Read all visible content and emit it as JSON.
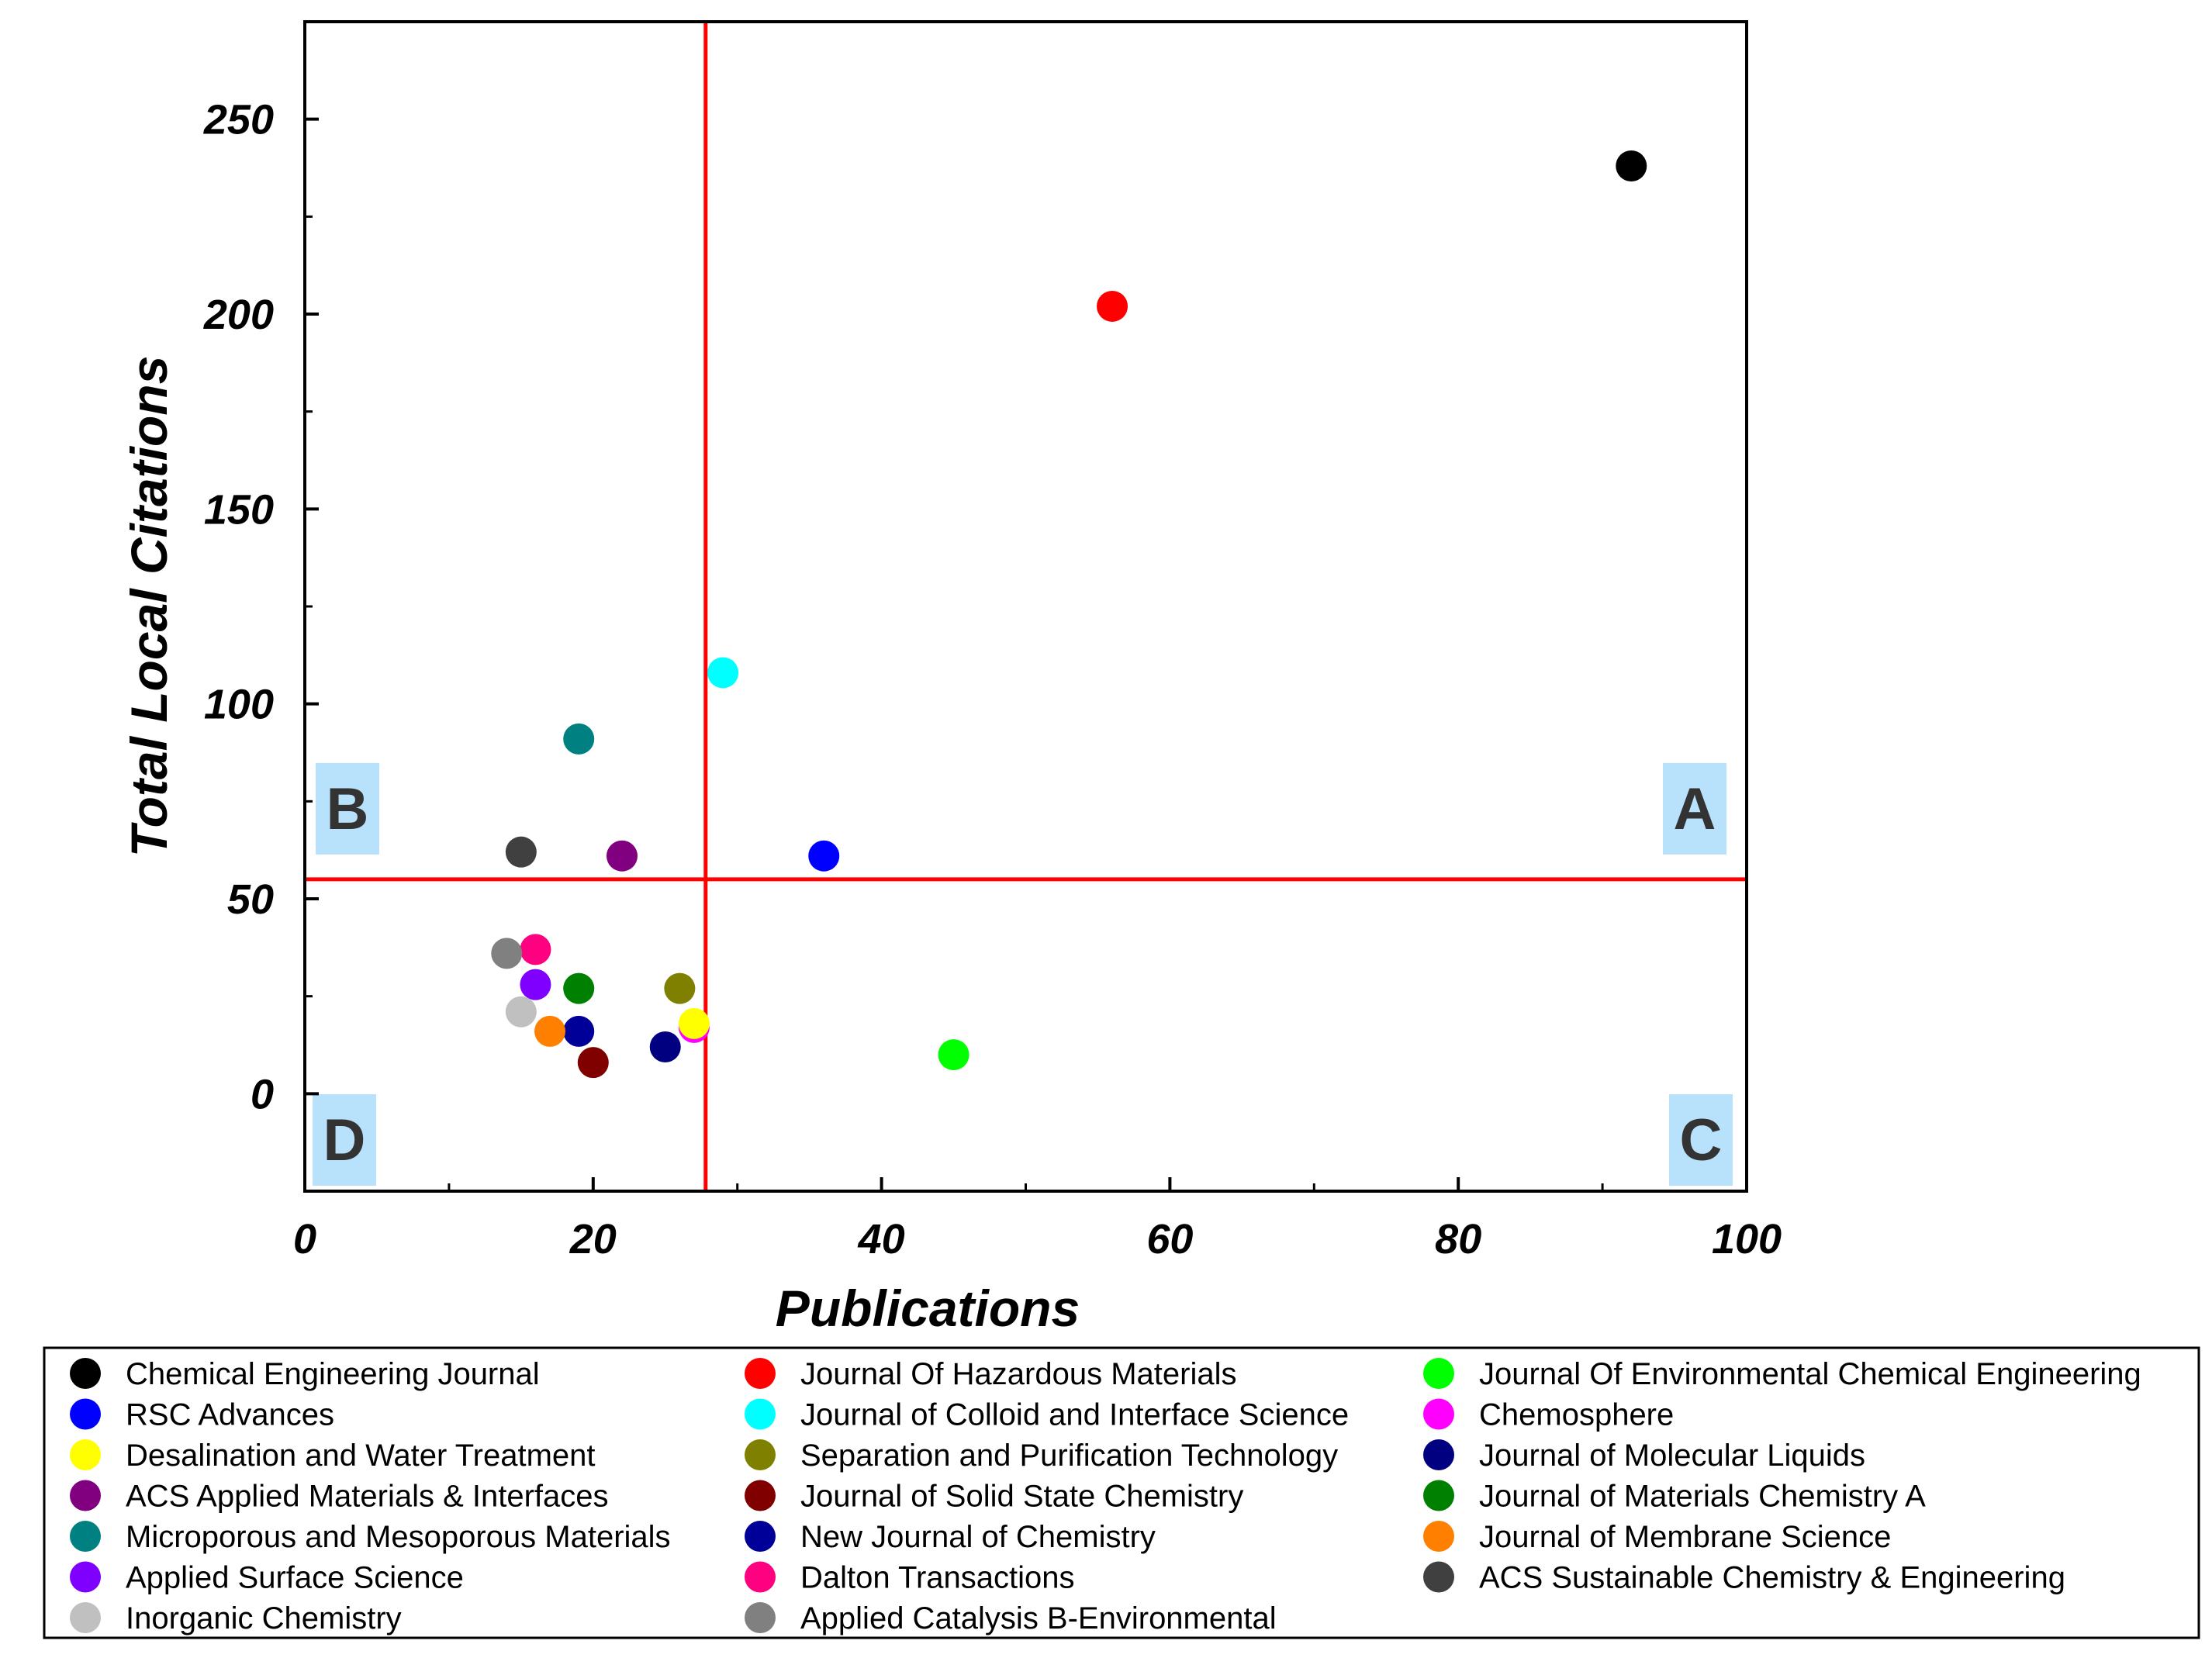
{
  "chart_data": {
    "type": "scatter",
    "xlabel": "Publications",
    "ylabel": "Total Local Citations",
    "xlim": [
      0,
      100
    ],
    "ylim": [
      -25,
      275
    ],
    "xticks": [
      0,
      20,
      40,
      60,
      80,
      100
    ],
    "yticks": [
      0,
      50,
      100,
      150,
      200,
      250
    ],
    "threshold_lines": {
      "x": 27.8,
      "y": 55,
      "color": "#ff0000"
    },
    "quadrant_labels": [
      {
        "label": "A",
        "position": "top-right"
      },
      {
        "label": "B",
        "position": "top-left"
      },
      {
        "label": "C",
        "position": "bottom-right"
      },
      {
        "label": "D",
        "position": "bottom-left"
      }
    ],
    "quadrant_label_bg": "#b8e1fb",
    "legend_position": "bottom",
    "series": [
      {
        "name": "Chemical Engineering Journal",
        "color": "#000000",
        "x": 92,
        "y": 238
      },
      {
        "name": "Journal Of Hazardous Materials",
        "color": "#ff0000",
        "x": 56,
        "y": 202
      },
      {
        "name": "Journal Of Environmental Chemical Engineering",
        "color": "#00ff00",
        "x": 45,
        "y": 10
      },
      {
        "name": "RSC Advances",
        "color": "#0000ff",
        "x": 36,
        "y": 61
      },
      {
        "name": "Journal of Colloid and Interface Science",
        "color": "#00ffff",
        "x": 29,
        "y": 108
      },
      {
        "name": "Chemosphere",
        "color": "#ff00ff",
        "x": 27,
        "y": 17
      },
      {
        "name": "Desalination and Water Treatment",
        "color": "#ffff00",
        "x": 27,
        "y": 18
      },
      {
        "name": "Separation and Purification Technology",
        "color": "#808000",
        "x": 26,
        "y": 27
      },
      {
        "name": "Journal of Molecular Liquids",
        "color": "#000080",
        "x": 25,
        "y": 12
      },
      {
        "name": "ACS Applied Materials & Interfaces",
        "color": "#800080",
        "x": 22,
        "y": 61
      },
      {
        "name": "Journal of Solid State Chemistry",
        "color": "#800000",
        "x": 20,
        "y": 8
      },
      {
        "name": "Journal of Materials Chemistry A",
        "color": "#008000",
        "x": 19,
        "y": 27
      },
      {
        "name": "Microporous and Mesoporous Materials",
        "color": "#008080",
        "x": 19,
        "y": 91
      },
      {
        "name": "New Journal of Chemistry",
        "color": "#000099",
        "x": 19,
        "y": 16
      },
      {
        "name": "Journal of Membrane Science",
        "color": "#ff8000",
        "x": 17,
        "y": 16
      },
      {
        "name": "Applied Surface Science",
        "color": "#8000ff",
        "x": 16,
        "y": 28
      },
      {
        "name": "Dalton Transactions",
        "color": "#ff0080",
        "x": 16,
        "y": 37
      },
      {
        "name": "ACS Sustainable Chemistry & Engineering",
        "color": "#404040",
        "x": 15,
        "y": 62
      },
      {
        "name": "Inorganic Chemistry",
        "color": "#c0c0c0",
        "x": 15,
        "y": 21
      },
      {
        "name": "Applied Catalysis B-Environmental",
        "color": "#808080",
        "x": 14,
        "y": 36
      }
    ],
    "legend_order": [
      "Chemical Engineering Journal",
      "Journal Of Hazardous Materials",
      "Journal Of Environmental Chemical Engineering",
      "RSC Advances",
      "Journal of Colloid and Interface Science",
      "Chemosphere",
      "Desalination and Water Treatment",
      "Separation and Purification Technology",
      "Journal of Molecular Liquids",
      "ACS Applied Materials & Interfaces",
      "Journal of Solid State Chemistry",
      "Journal of Materials Chemistry A",
      "Microporous and Mesoporous Materials",
      "New Journal of Chemistry",
      "Journal of Membrane Science",
      "Applied Surface Science",
      "Dalton Transactions",
      "ACS Sustainable Chemistry & Engineering",
      "Inorganic Chemistry",
      "Applied Catalysis B-Environmental"
    ]
  }
}
